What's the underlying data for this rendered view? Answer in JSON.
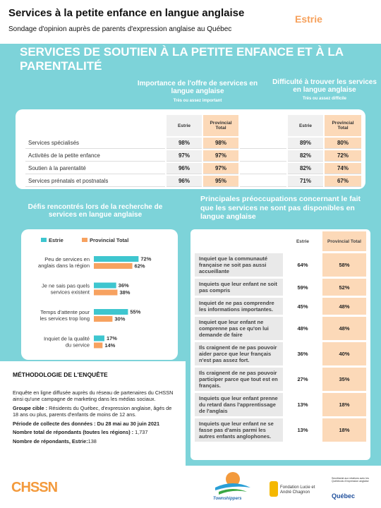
{
  "header": {
    "title": "Services à la petite enfance en langue anglaise",
    "subtitle": "Sondage d'opinion auprès de parents d'expression anglaise au Québec",
    "region": "Estrie"
  },
  "banner": "SERVICES DE SOUTIEN À LA PETITE ENFANCE ET À LA PARENTALITÉ",
  "services_table": {
    "importance_heading": "Importance de l'offre de services en langue anglaise",
    "importance_subheading": "Très ou assez important",
    "difficulty_heading": "Difficulté à trouver les services en langue anglaise",
    "difficulty_subheading": "Très ou assez difficile",
    "columns": [
      "Estrie",
      "Provincial Total",
      "Estrie",
      "Provincial Total"
    ],
    "rows": [
      [
        "Services spécialisés",
        "98%",
        "98%",
        "89%",
        "80%"
      ],
      [
        "Activités de la petite enfance",
        "97%",
        "97%",
        "82%",
        "72%"
      ],
      [
        "Soutien à la parentalité",
        "96%",
        "97%",
        "82%",
        "74%"
      ],
      [
        "Services prénatals et postnatals",
        "96%",
        "95%",
        "71%",
        "67%"
      ]
    ]
  },
  "chart_data": {
    "type": "bar",
    "orientation": "horizontal",
    "title": "Défis rencontrés lors de la recherche de services en langue anglaise",
    "categories": [
      "Peu de services en anglais dans la région",
      "Je ne sais pas quels services existent",
      "Temps d'attente pour les services trop long",
      "Inquiet de la qualité du service"
    ],
    "series": [
      {
        "name": "Estrie",
        "color": "#3ec6cf",
        "values": [
          72,
          36,
          55,
          17
        ],
        "value_labels": [
          "72%",
          "36%",
          "55%",
          "17%"
        ]
      },
      {
        "name": "Provincial Total",
        "color": "#f7a260",
        "values": [
          62,
          38,
          30,
          14
        ],
        "value_labels": [
          "62%",
          "38%",
          "30%",
          "14%"
        ]
      }
    ],
    "legend": "top"
  },
  "concerns_table": {
    "title": "Principales préoccupations concernant le fait que les services ne sont pas disponibles en langue anglaise",
    "columns": [
      "Estrie",
      "Provincial Total"
    ],
    "rows": [
      [
        "Inquiet que la communauté française ne soit pas aussi accueillante",
        "64%",
        "58%"
      ],
      [
        "Inquiets que leur enfant ne soit pas compris",
        "59%",
        "52%"
      ],
      [
        "Inquiet de ne pas comprendre les informations importantes.",
        "45%",
        "48%"
      ],
      [
        "Inquiet que leur enfant ne comprenne pas ce qu'on lui demande de faire",
        "48%",
        "48%"
      ],
      [
        "Ils craignent de ne pas pouvoir aider parce que leur français n'est pas assez fort.",
        "36%",
        "40%"
      ],
      [
        "Ils craignent de ne pas pouvoir participer parce que tout est en français.",
        "27%",
        "35%"
      ],
      [
        "Inquiets que leur enfant prenne du retard dans l'apprentissage de l'anglais",
        "13%",
        "18%"
      ],
      [
        "Inquiets que leur enfant ne se fasse pas d'amis parmi les autres enfants anglophones.",
        "13%",
        "18%"
      ]
    ]
  },
  "methodology": {
    "title": "MÉTHODOLOGIE DE L'ENQUÊTE",
    "description": "Enquête en ligne diffusée auprès du réseau de partenaires du CHSSN ainsi qu'une campagne de marketing dans les médias sociaux.",
    "target_label": "Groupe cible :",
    "target_text": "Résidents du Québec, d'expression anglaise, âgés de 18 ans ou plus, parents d'enfants de moins de 12 ans.",
    "period": "Période de collecte des données : Du 28 mai au 30 juin 2021",
    "total_label": "Nombre total de répondants (toutes les régions) :",
    "total_value": "1,737",
    "estrie_label": "Nombre de répondants, Estrie:",
    "estrie_value": "138"
  },
  "footer": {
    "chssn": "CHSSN",
    "townshippers": "Townshippers",
    "chagnon": "Fondation Lucie et André Chagnon",
    "quebec_note": "Secrétariat aux relations avec les Québécois d'expression anglaise",
    "quebec": "Québec"
  }
}
